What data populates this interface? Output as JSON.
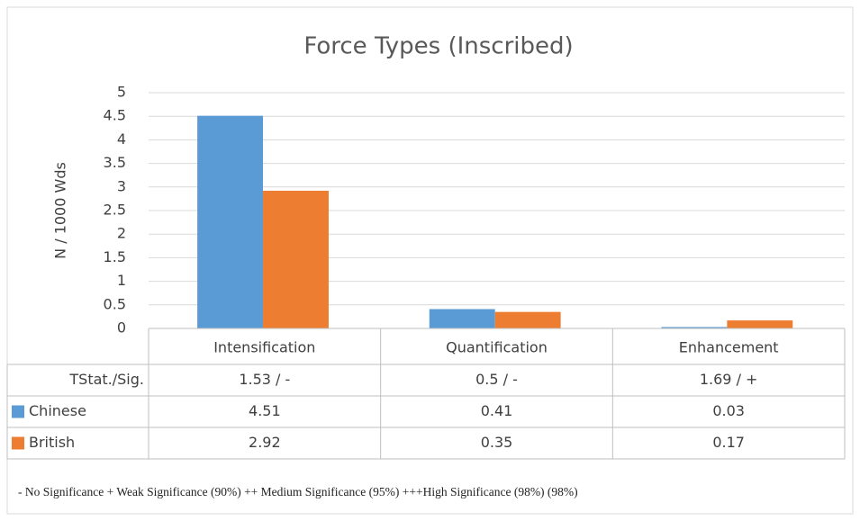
{
  "chart_data": {
    "type": "bar",
    "title": "Force Types (Inscribed)",
    "y_label": "N / 1000 Wds",
    "categories": [
      "Intensification",
      "Quantification",
      "Enhancement"
    ],
    "series": [
      {
        "name": "Chinese",
        "color": "#5b9bd5",
        "values": [
          4.51,
          0.41,
          0.03
        ]
      },
      {
        "name": "British",
        "color": "#ed7d31",
        "values": [
          2.92,
          0.35,
          0.17
        ]
      }
    ],
    "stat_label": "TStat./Sig.",
    "stat_values": [
      "1.53 / -",
      "0.5 / -",
      "1.69 / +"
    ],
    "ylim": [
      0,
      5
    ],
    "yticks": [
      0,
      0.5,
      1,
      1.5,
      2,
      2.5,
      3,
      3.5,
      4,
      4.5,
      5
    ],
    "grid": true,
    "note": "- No Significance  + Weak Significance (90%)  ++ Medium Significance (95%)  +++High Significance (98%) (98%)"
  }
}
